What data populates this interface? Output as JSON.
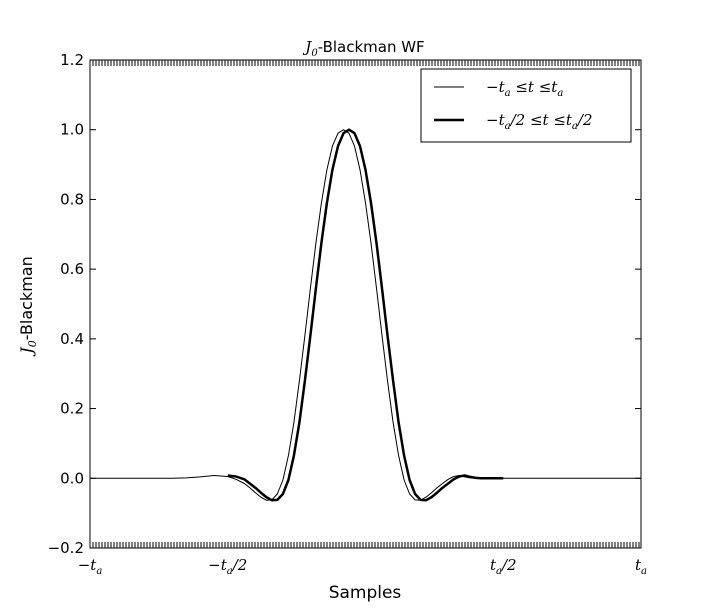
{
  "chart_data": {
    "type": "line",
    "title": {
      "symbol": "J",
      "sub": "0",
      "text": "-Blackman WF"
    },
    "xlabel": "Samples",
    "ylabel": {
      "symbol": "J",
      "sub": "0",
      "text": "-Blackman"
    },
    "xlim": [
      -1,
      1
    ],
    "ylim": [
      -0.2,
      1.2
    ],
    "grid": false,
    "legend_position": "top-right",
    "yticks": [
      {
        "value": -0.2,
        "label": "−0.2"
      },
      {
        "value": 0.0,
        "label": "0.0"
      },
      {
        "value": 0.2,
        "label": "0.2"
      },
      {
        "value": 0.4,
        "label": "0.4"
      },
      {
        "value": 0.6,
        "label": "0.6"
      },
      {
        "value": 0.8,
        "label": "0.8"
      },
      {
        "value": 1.0,
        "label": "1.0"
      },
      {
        "value": 1.2,
        "label": "1.2"
      }
    ],
    "xticks": [
      {
        "value": -1.0,
        "pre": "−",
        "sym": "t",
        "sub": "a",
        "post": ""
      },
      {
        "value": -0.5,
        "pre": "−",
        "sym": "t",
        "sub": "a",
        "post": "/2"
      },
      {
        "value": 0.5,
        "pre": "",
        "sym": "t",
        "sub": "a",
        "post": "/2"
      },
      {
        "value": 1.0,
        "pre": "",
        "sym": "t",
        "sub": "a",
        "post": ""
      }
    ],
    "series": [
      {
        "name": "−tₐ ≤t ≤tₐ",
        "legend": {
          "p1": "−",
          "s1": "t",
          "b1": "a",
          "p2": " ≤",
          "s2": "t",
          "p3": " ≤",
          "s3": "t",
          "b3": "a",
          "p4": ""
        },
        "style": "thin",
        "x": [
          -1.0,
          -0.9,
          -0.8,
          -0.7,
          -0.65,
          -0.6,
          -0.55,
          -0.5,
          -0.47,
          -0.44,
          -0.42,
          -0.4,
          -0.38,
          -0.36,
          -0.34,
          -0.32,
          -0.3,
          -0.28,
          -0.26,
          -0.24,
          -0.22,
          -0.2,
          -0.18,
          -0.16,
          -0.14,
          -0.12,
          -0.1,
          -0.08,
          -0.06,
          -0.04,
          -0.02,
          0.0,
          0.02,
          0.04,
          0.06,
          0.08,
          0.1,
          0.12,
          0.14,
          0.16,
          0.18,
          0.2,
          0.22,
          0.24,
          0.26,
          0.28,
          0.3,
          0.32,
          0.34,
          0.36,
          0.38,
          0.4,
          0.42,
          0.44,
          0.47,
          0.5,
          0.55,
          0.6,
          0.65,
          0.7,
          0.8,
          0.9,
          1.0
        ],
        "y": [
          0.0,
          0.0,
          0.0,
          0.0,
          0.001,
          0.004,
          0.008,
          0.005,
          -0.003,
          -0.015,
          -0.027,
          -0.041,
          -0.054,
          -0.063,
          -0.062,
          -0.045,
          -0.005,
          0.065,
          0.16,
          0.28,
          0.41,
          0.545,
          0.675,
          0.79,
          0.885,
          0.953,
          0.99,
          1.0,
          0.99,
          0.953,
          0.885,
          0.79,
          0.675,
          0.545,
          0.41,
          0.28,
          0.16,
          0.065,
          -0.005,
          -0.045,
          -0.062,
          -0.063,
          -0.054,
          -0.041,
          -0.027,
          -0.015,
          -0.003,
          0.005,
          0.008,
          0.004,
          0.001,
          0.0,
          0.0,
          0.0,
          0.0,
          0.0,
          0.0,
          0.0,
          0.0,
          0.0,
          0.0,
          0.0,
          0.0
        ]
      },
      {
        "name": "−tₐ/2 ≤t ≤tₐ/2",
        "legend": {
          "p1": "−",
          "s1": "t",
          "b1": "a",
          "p2": "/2 ≤",
          "s2": "t",
          "p3": " ≤",
          "s3": "t",
          "b3": "a",
          "p4": "/2"
        },
        "style": "thick",
        "x": [
          -0.5,
          -0.47,
          -0.44,
          -0.42,
          -0.4,
          -0.38,
          -0.36,
          -0.34,
          -0.32,
          -0.3,
          -0.28,
          -0.26,
          -0.24,
          -0.22,
          -0.2,
          -0.18,
          -0.16,
          -0.14,
          -0.12,
          -0.1,
          -0.08,
          -0.06,
          -0.04,
          -0.02,
          0.0,
          0.02,
          0.04,
          0.06,
          0.08,
          0.1,
          0.12,
          0.14,
          0.16,
          0.18,
          0.2,
          0.22,
          0.24,
          0.26,
          0.28,
          0.3,
          0.32,
          0.34,
          0.36,
          0.38,
          0.4,
          0.42,
          0.44,
          0.47,
          0.5
        ],
        "y": [
          0.008,
          0.005,
          -0.003,
          -0.015,
          -0.027,
          -0.041,
          -0.054,
          -0.063,
          -0.062,
          -0.045,
          -0.005,
          0.065,
          0.16,
          0.28,
          0.41,
          0.545,
          0.675,
          0.79,
          0.885,
          0.953,
          0.99,
          1.0,
          0.99,
          0.953,
          0.885,
          0.79,
          0.675,
          0.545,
          0.41,
          0.28,
          0.16,
          0.065,
          -0.005,
          -0.045,
          -0.062,
          -0.063,
          -0.054,
          -0.041,
          -0.027,
          -0.015,
          -0.003,
          0.005,
          0.008,
          0.004,
          0.001,
          0.0,
          0.0,
          0.0,
          0.0
        ]
      }
    ]
  }
}
